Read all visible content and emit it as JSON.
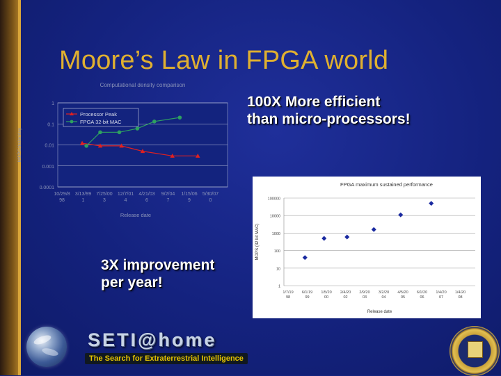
{
  "title": "Moore’s Law in FPGA world",
  "callouts": {
    "efficient": [
      "100X More efficient",
      "than micro-processors!"
    ],
    "improvement": [
      "3X improvement",
      "per year!"
    ]
  },
  "seti": {
    "logo": "SETI@home",
    "tagline": "The Search for Extraterrestrial Intelligence"
  },
  "colors": {
    "background": "#13237e",
    "title": "#e0b030",
    "processor_series": "#e02020",
    "fpga_series": "#2ea060",
    "chart2_marker": "#1a2aa0"
  },
  "chart_data": [
    {
      "type": "line",
      "title": "Computational density comparison",
      "xlabel": "Release date",
      "ylabel": "MOPS/dollar/day",
      "x_ticks": [
        "10/29/8\n98",
        "3/13/99\n1",
        "7/25/00\n3",
        "12/7/01\n4",
        "4/21/03\n6",
        "9/2/04\n7",
        "1/15/06\n9",
        "5/30/07\n0"
      ],
      "y_ticks": [
        "0.0001",
        "0.001",
        "0.01",
        "0.1",
        "1"
      ],
      "ylog": true,
      "ylim": [
        0.0001,
        1
      ],
      "legend": "top-left",
      "grid": true,
      "series": [
        {
          "name": "Processor Peak",
          "color": "#e02020",
          "marker": "triangle",
          "points": [
            [
              1.15,
              0.012
            ],
            [
              2.0,
              0.009
            ],
            [
              3.0,
              0.009
            ],
            [
              4.0,
              0.005
            ],
            [
              5.4,
              0.003
            ],
            [
              6.6,
              0.003
            ]
          ]
        },
        {
          "name": "FPGA 32-bit MAC",
          "color": "#2ea060",
          "marker": "circle",
          "points": [
            [
              1.35,
              0.009
            ],
            [
              2.0,
              0.04
            ],
            [
              2.9,
              0.04
            ],
            [
              3.75,
              0.06
            ],
            [
              4.55,
              0.13
            ],
            [
              5.75,
              0.2
            ]
          ]
        }
      ]
    },
    {
      "type": "scatter",
      "title": "FPGA maximum sustained performance",
      "xlabel": "Release date",
      "ylabel": "MOPS (32 bit MAC)",
      "x_ticks": [
        "1/7/19\n98",
        "6/1/19\n99",
        "1/5/20\n00",
        "2/4/20\n02",
        "2/9/20\n03",
        "3/2/20\n04",
        "4/5/20\n05",
        "6/1/20\n06",
        "1/4/20\n07",
        "1/4/20\n08"
      ],
      "y_ticks": [
        "1",
        "10",
        "100",
        "1000",
        "10000",
        "100000"
      ],
      "ylog": true,
      "ylim": [
        1,
        100000
      ],
      "grid": true,
      "series": [
        {
          "name": "",
          "color": "#1a2aa0",
          "marker": "diamond",
          "points": [
            [
              1.1,
              40
            ],
            [
              2.1,
              500
            ],
            [
              3.3,
              600
            ],
            [
              4.7,
              1600
            ],
            [
              6.1,
              11000
            ],
            [
              7.7,
              50000
            ]
          ]
        }
      ]
    }
  ]
}
